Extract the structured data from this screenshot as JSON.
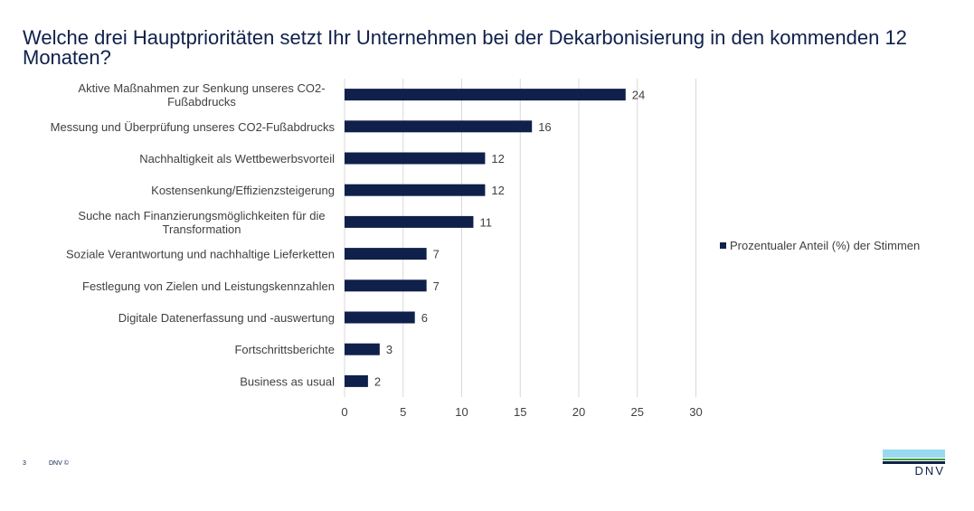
{
  "title": "Welche drei Hauptprioritäten setzt Ihr Unternehmen bei der Dekarbonisierung in den kommenden 12 Monaten?",
  "chart_data": {
    "type": "bar",
    "orientation": "horizontal",
    "categories": [
      [
        "Aktive Maßnahmen zur Senkung unseres CO2-",
        "Fußabdrucks"
      ],
      [
        "Messung und Überprüfung unseres CO2-Fußabdrucks"
      ],
      [
        "Nachhaltigkeit als Wettbewerbsvorteil"
      ],
      [
        "Kostensenkung/Effizienzsteigerung"
      ],
      [
        "Suche nach Finanzierungsmöglichkeiten für die",
        "Transformation"
      ],
      [
        "Soziale Verantwortung und nachhaltige Lieferketten"
      ],
      [
        "Festlegung von Zielen und Leistungskennzahlen"
      ],
      [
        "Digitale Datenerfassung und -auswertung"
      ],
      [
        "Fortschrittsberichte"
      ],
      [
        "Business as usual"
      ]
    ],
    "series": [
      {
        "name": "Prozentualer Anteil (%) der Stimmen",
        "values": [
          24,
          16,
          12,
          12,
          11,
          7,
          7,
          6,
          3,
          2
        ]
      }
    ],
    "xlim": [
      0,
      30
    ],
    "xticks": [
      0,
      5,
      10,
      15,
      20,
      25,
      30
    ],
    "grid": "vertical",
    "legend": "right",
    "data_labels": true,
    "bar_color": "#0f204b"
  },
  "footer": {
    "page": "3",
    "copyright": "DNV ©"
  },
  "logo": {
    "text": "DNV"
  }
}
